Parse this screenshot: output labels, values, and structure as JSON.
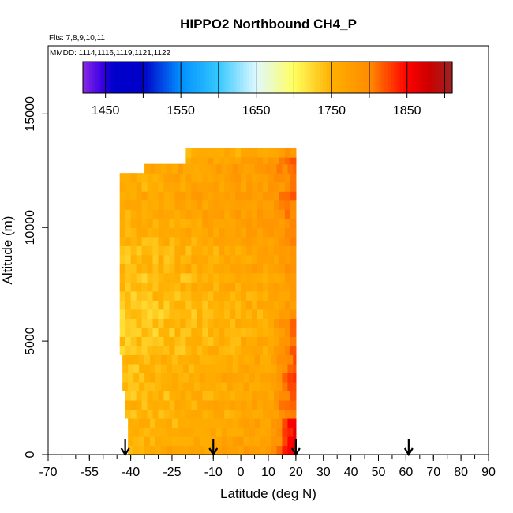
{
  "chart_data": {
    "type": "heatmap",
    "title": "HIPPO2 Northbound CH4_P",
    "flights_note": "Flts: 7,8,9,10,11",
    "dates_note": "MMDD: 1114,1116,1119,1121,1122",
    "xlabel": "Latitude (deg N)",
    "ylabel": "Altitude (m)",
    "xlim": [
      -70,
      90
    ],
    "ylim": [
      0,
      18000
    ],
    "x_ticks": [
      -70,
      -55,
      -40,
      -25,
      -10,
      0,
      10,
      20,
      30,
      40,
      50,
      60,
      70,
      80,
      90
    ],
    "x_tick_labels": [
      "-70",
      "-55",
      "-40",
      "-25",
      "-10",
      "0",
      "10",
      "20",
      "30",
      "40",
      "50",
      "60",
      "70",
      "80",
      "90"
    ],
    "x_minor_step": 5,
    "y_ticks": [
      0,
      5000,
      10000,
      15000
    ],
    "y_tick_labels": [
      "0",
      "5000",
      "10000",
      "15000"
    ],
    "colorbar": {
      "range": [
        1420,
        1910
      ],
      "ticks": [
        1450,
        1500,
        1550,
        1600,
        1650,
        1700,
        1750,
        1800,
        1850,
        1900
      ],
      "labeled_ticks": [
        1450,
        1550,
        1650,
        1750,
        1850
      ],
      "tick_labels": [
        "1450",
        "1550",
        "1650",
        "1750",
        "1850"
      ],
      "stops": [
        {
          "value": 1420,
          "color": "#8a2be2"
        },
        {
          "value": 1445,
          "color": "#3b00e6"
        },
        {
          "value": 1460,
          "color": "#0000cc"
        },
        {
          "value": 1500,
          "color": "#0000c8"
        },
        {
          "value": 1550,
          "color": "#0090ff"
        },
        {
          "value": 1600,
          "color": "#35c8ff"
        },
        {
          "value": 1650,
          "color": "#dff8ff"
        },
        {
          "value": 1700,
          "color": "#ffff60"
        },
        {
          "value": 1750,
          "color": "#ffb000"
        },
        {
          "value": 1800,
          "color": "#ff8c00"
        },
        {
          "value": 1850,
          "color": "#ff0000"
        },
        {
          "value": 1880,
          "color": "#cc0000"
        },
        {
          "value": 1910,
          "color": "#9e2222"
        }
      ]
    },
    "arrows_latitude": [
      -42,
      -10,
      20,
      61
    ],
    "bands": [
      {
        "alt": 200,
        "lat_min": -41,
        "lat_max": 20,
        "base": 1755
      },
      {
        "alt": 600,
        "lat_min": -41,
        "lat_max": 20,
        "base": 1750
      },
      {
        "alt": 1000,
        "lat_min": -41,
        "lat_max": 20,
        "base": 1745
      },
      {
        "alt": 1400,
        "lat_min": -41,
        "lat_max": 20,
        "base": 1745
      },
      {
        "alt": 1800,
        "lat_min": -42,
        "lat_max": 20,
        "base": 1740
      },
      {
        "alt": 2200,
        "lat_min": -42,
        "lat_max": 20,
        "base": 1745
      },
      {
        "alt": 2600,
        "lat_min": -42,
        "lat_max": 20,
        "base": 1740
      },
      {
        "alt": 3000,
        "lat_min": -43,
        "lat_max": 20,
        "base": 1740
      },
      {
        "alt": 3400,
        "lat_min": -43,
        "lat_max": 20,
        "base": 1745
      },
      {
        "alt": 3800,
        "lat_min": -43,
        "lat_max": 20,
        "base": 1740
      },
      {
        "alt": 4200,
        "lat_min": -43,
        "lat_max": 20,
        "base": 1740
      },
      {
        "alt": 4600,
        "lat_min": -44,
        "lat_max": 20,
        "base": 1735
      },
      {
        "alt": 5000,
        "lat_min": -44,
        "lat_max": 20,
        "base": 1735
      },
      {
        "alt": 5400,
        "lat_min": -44,
        "lat_max": 20,
        "base": 1730
      },
      {
        "alt": 5800,
        "lat_min": -44,
        "lat_max": 20,
        "base": 1735
      },
      {
        "alt": 6200,
        "lat_min": -44,
        "lat_max": 20,
        "base": 1730
      },
      {
        "alt": 6600,
        "lat_min": -44,
        "lat_max": 20,
        "base": 1735
      },
      {
        "alt": 7000,
        "lat_min": -44,
        "lat_max": 20,
        "base": 1735
      },
      {
        "alt": 7400,
        "lat_min": -44,
        "lat_max": 20,
        "base": 1740
      },
      {
        "alt": 7800,
        "lat_min": -44,
        "lat_max": 20,
        "base": 1735
      },
      {
        "alt": 8200,
        "lat_min": -44,
        "lat_max": 20,
        "base": 1745
      },
      {
        "alt": 8600,
        "lat_min": -44,
        "lat_max": 20,
        "base": 1740
      },
      {
        "alt": 9000,
        "lat_min": -44,
        "lat_max": 20,
        "base": 1740
      },
      {
        "alt": 9400,
        "lat_min": -44,
        "lat_max": 20,
        "base": 1745
      },
      {
        "alt": 9800,
        "lat_min": -44,
        "lat_max": 20,
        "base": 1750
      },
      {
        "alt": 10200,
        "lat_min": -44,
        "lat_max": 20,
        "base": 1750
      },
      {
        "alt": 10600,
        "lat_min": -44,
        "lat_max": 20,
        "base": 1755
      },
      {
        "alt": 11000,
        "lat_min": -44,
        "lat_max": 20,
        "base": 1755
      },
      {
        "alt": 11400,
        "lat_min": -44,
        "lat_max": 20,
        "base": 1760
      },
      {
        "alt": 11800,
        "lat_min": -44,
        "lat_max": 20,
        "base": 1750
      },
      {
        "alt": 12200,
        "lat_min": -44,
        "lat_max": 20,
        "base": 1755
      },
      {
        "alt": 12600,
        "lat_min": -35,
        "lat_max": 20,
        "base": 1760
      },
      {
        "alt": 13000,
        "lat_min": -20,
        "lat_max": 20,
        "base": 1760
      },
      {
        "alt": 13300,
        "lat_min": -20,
        "lat_max": 20,
        "base": 1745
      }
    ]
  }
}
